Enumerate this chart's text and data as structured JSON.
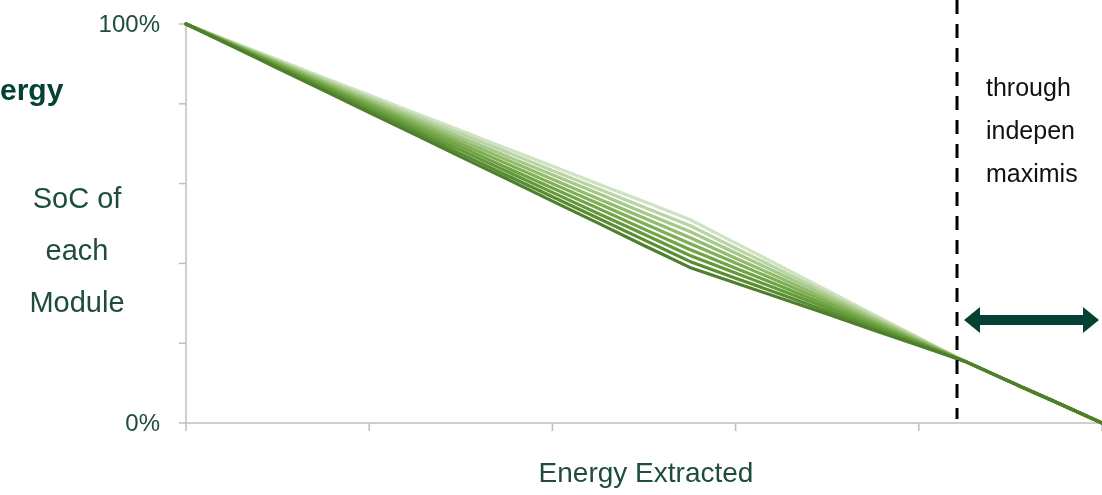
{
  "chart_data": {
    "type": "line",
    "xlabel": "Energy Extracted",
    "ylabel": "SoC of each Module",
    "categories": [
      null,
      null,
      null,
      null,
      null,
      null,
      null,
      null,
      null,
      null,
      null,
      null,
      null,
      null,
      null,
      null,
      null,
      null,
      null,
      null,
      null
    ],
    "ylim": [
      0,
      100
    ],
    "yticks": [
      {
        "value": 0,
        "label": "0%"
      },
      {
        "value": 20,
        "label": null
      },
      {
        "value": 40,
        "label": null
      },
      {
        "value": 60,
        "label": null
      },
      {
        "value": 80,
        "label": null
      },
      {
        "value": 100,
        "label": "100%"
      }
    ],
    "grid": false,
    "marker": "none",
    "line_style": "solid",
    "series": [
      {
        "color": "#cfe2c2",
        "values": [
          100,
          95.5,
          91.1,
          86.6,
          82.2,
          77.7,
          73.3,
          68.8,
          64.4,
          59.9,
          55.5,
          51,
          45.1,
          39.2,
          33.2,
          27.3,
          21.4,
          15.5,
          10.3,
          5.2,
          0
        ]
      },
      {
        "color": "#bad5a5",
        "values": [
          100,
          95.4,
          90.8,
          86.2,
          81.6,
          77.0,
          72.5,
          67.9,
          63.3,
          58.7,
          54.1,
          49.5,
          43.8,
          38.2,
          32.5,
          26.8,
          21.2,
          15.5,
          10.3,
          5.2,
          0
        ]
      },
      {
        "color": "#a6c888",
        "values": [
          100,
          95.3,
          90.5,
          85.8,
          81.1,
          76.4,
          71.6,
          66.9,
          62.2,
          57.5,
          52.7,
          48,
          42.6,
          37.2,
          31.8,
          26.3,
          20.9,
          15.5,
          10.3,
          5.2,
          0
        ]
      },
      {
        "color": "#92bb6c",
        "values": [
          100,
          95.1,
          90.3,
          85.4,
          80.5,
          75.7,
          70.8,
          66.0,
          61.1,
          56.2,
          51.4,
          46.5,
          41.3,
          36.2,
          31.0,
          25.8,
          20.7,
          15.5,
          10.3,
          5.2,
          0
        ]
      },
      {
        "color": "#7fae55",
        "values": [
          100,
          95,
          90,
          85,
          80,
          75,
          70,
          65,
          60,
          55,
          50,
          45,
          40.1,
          35.2,
          30.3,
          25.3,
          20.4,
          15.5,
          10.3,
          5.2,
          0
        ]
      },
      {
        "color": "#6fa344",
        "values": [
          100,
          94.9,
          89.7,
          84.6,
          79.5,
          74.3,
          69.2,
          64.0,
          58.9,
          53.8,
          48.6,
          43.5,
          38.8,
          34.2,
          29.5,
          24.8,
          20.2,
          15.5,
          10.3,
          5.2,
          0
        ]
      },
      {
        "color": "#64993a",
        "values": [
          100,
          94.7,
          89.5,
          84.2,
          78.9,
          73.6,
          68.4,
          63.1,
          57.8,
          52.5,
          47.3,
          42,
          37.6,
          33.2,
          28.8,
          24.3,
          19.9,
          15.5,
          10.3,
          5.2,
          0
        ]
      },
      {
        "color": "#5a8d33",
        "values": [
          100,
          94.6,
          89.2,
          83.8,
          78.4,
          73.0,
          67.5,
          62.1,
          56.7,
          51.3,
          45.9,
          40.5,
          36.3,
          32.2,
          28.0,
          23.8,
          19.7,
          15.5,
          10.3,
          5.2,
          0
        ]
      },
      {
        "color": "#4f7f2c",
        "values": [
          100,
          94.5,
          88.9,
          83.4,
          77.8,
          72.3,
          66.7,
          61.2,
          55.6,
          50.1,
          44.5,
          39,
          35.1,
          31.2,
          27.3,
          23.3,
          19.4,
          15.5,
          10.3,
          5.2,
          0
        ]
      }
    ],
    "annotations": [
      "ergy",
      "through",
      "indepen",
      "maximis"
    ]
  }
}
